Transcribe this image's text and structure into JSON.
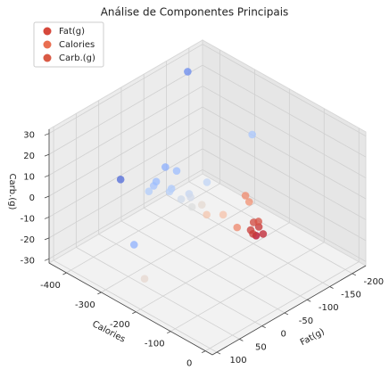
{
  "chart_data": {
    "type": "scatter3d",
    "title": "Análise de Componentes Principais",
    "xlabel": "Fat(g)",
    "ylabel": "Calories",
    "zlabel": "Carb.(g)",
    "legend": [
      {
        "name": "Fat(g)",
        "color": "#d6483b"
      },
      {
        "name": "Calories",
        "color": "#e96e51"
      },
      {
        "name": "Carb.(g)",
        "color": "#d95a45"
      }
    ],
    "legend_position": "upper left",
    "x": [
      -181,
      -170,
      20,
      71,
      77,
      -73,
      -78,
      -24,
      -8,
      -35,
      -38,
      -30,
      -47,
      -28,
      -89,
      -42,
      -46,
      -60,
      -45,
      -64,
      -105,
      -97,
      -95,
      -143,
      -140,
      -120,
      -131,
      -120,
      -150,
      -125
    ],
    "y": [
      -429,
      -229,
      -361,
      -256,
      -218,
      -353,
      -327,
      -323,
      -316,
      -330,
      -290,
      -285,
      -251,
      -249,
      -254,
      -240,
      -199,
      -231,
      -240,
      -175,
      -164,
      -143,
      -175,
      -190,
      -171,
      -153,
      -147,
      -162,
      -185,
      -175
    ],
    "z": [
      25,
      15,
      5,
      -10,
      -22,
      0,
      0,
      0,
      0,
      0,
      0,
      0,
      0,
      0,
      0,
      0,
      -5,
      -5,
      -5,
      -5,
      0,
      0,
      -15,
      -20,
      -20,
      -20,
      -20,
      -20,
      -20,
      -20
    ],
    "colors": [
      "#6a8bef",
      "#aac7fd",
      "#4f69d9",
      "#8db0fe",
      "#e6d7cf",
      "#8caffe",
      "#9ebeff",
      "#a5c3fe",
      "#b3cdfb",
      "#9bbcff",
      "#aec9fc",
      "#b8d0f9",
      "#c5d6f2",
      "#cfdaea",
      "#c0d4f5",
      "#d1dae9",
      "#f4c5ad",
      "#e4d9d2",
      "#dcdddd",
      "#f5c1a9",
      "#f08a6c",
      "#f29072",
      "#ee8669",
      "#d0473d",
      "#c43032",
      "#b40426",
      "#bd1f2d",
      "#c83836",
      "#d65244",
      "#ca3b37"
    ],
    "xlim": [
      -230,
      110
    ],
    "xticks": [
      -200,
      -150,
      -100,
      -50,
      0,
      50,
      100
    ],
    "ylim": [
      -450,
      20
    ],
    "yticks": [
      -400,
      -300,
      -200,
      -100,
      0
    ],
    "zlim": [
      -32,
      32
    ],
    "zticks": [
      -30,
      -20,
      -10,
      0,
      10,
      20,
      30
    ],
    "grid": true
  }
}
